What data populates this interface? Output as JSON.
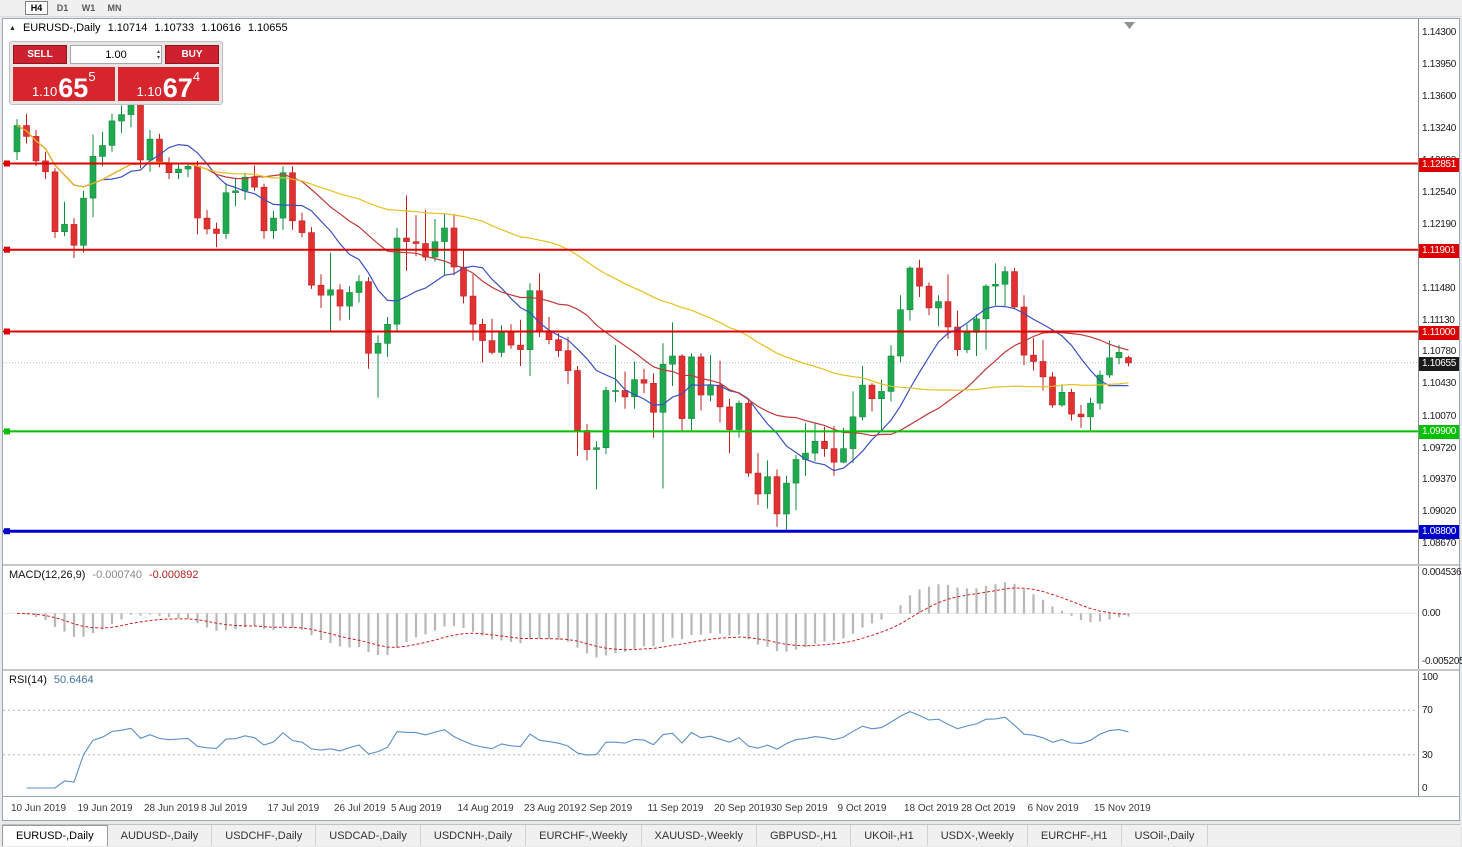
{
  "toolbar": {
    "timeframes": [
      {
        "label": "H4",
        "active": true
      },
      {
        "label": "D1",
        "active": false
      },
      {
        "label": "W1",
        "active": false
      },
      {
        "label": "MN",
        "active": false
      }
    ]
  },
  "chart": {
    "title": {
      "symbol": "EURUSD-,Daily",
      "open": "1.10714",
      "high": "1.10733",
      "low": "1.10616",
      "close": "1.10655"
    }
  },
  "trade_panel": {
    "sell_label": "SELL",
    "buy_label": "BUY",
    "volume": "1.00",
    "sell_price": {
      "base": "1.10",
      "pips": "65",
      "point": "5"
    },
    "buy_price": {
      "base": "1.10",
      "pips": "67",
      "point": "4"
    },
    "accent_color": "#d7252e"
  },
  "chart_data": {
    "type": "candlestick",
    "title": "EURUSD-,Daily",
    "main": {
      "y_range": [
        1.0867,
        1.143
      ],
      "y_axis_labels": [
        "1.14300",
        "1.13950",
        "1.13600",
        "1.13240",
        "1.12890",
        "1.12540",
        "1.12190",
        "1.11840",
        "1.11480",
        "1.11130",
        "1.10780",
        "1.10430",
        "1.10070",
        "1.09720",
        "1.09370",
        "1.09020",
        "1.08670"
      ],
      "current_price": {
        "value": 1.10655,
        "label": "1.10655",
        "badge_color": "#1a1a1a"
      },
      "h_lines": [
        {
          "price": 1.12851,
          "label": "1.12851",
          "color": "#dd0000",
          "width": 2
        },
        {
          "price": 1.11901,
          "label": "1.11901",
          "color": "#dd0000",
          "width": 2
        },
        {
          "price": 1.11,
          "label": "1.11000",
          "color": "#dd0000",
          "width": 2
        },
        {
          "price": 1.099,
          "label": "1.09900",
          "color": "#00c000",
          "width": 2
        },
        {
          "price": 1.088,
          "label": "1.08800",
          "color": "#0000cc",
          "width": 3
        }
      ],
      "moving_averages": [
        {
          "name": "ma-fast",
          "period": 10,
          "color": "#3a50c0"
        },
        {
          "name": "ma-medium",
          "period": 21,
          "color": "#c03a3a"
        },
        {
          "name": "ma-slow",
          "period": 50,
          "color": "#e8c020"
        }
      ],
      "colors": {
        "bull": "#1fa94f",
        "bull_border": "#128a3d",
        "bear": "#e03232",
        "bear_border": "#bf1f1f",
        "background": "#ffffff"
      },
      "date_labels": [
        {
          "index": 0,
          "label": "10 Jun 2019"
        },
        {
          "index": 7,
          "label": "19 Jun 2019"
        },
        {
          "index": 14,
          "label": "28 Jun 2019"
        },
        {
          "index": 20,
          "label": "8 Jul 2019"
        },
        {
          "index": 27,
          "label": "17 Jul 2019"
        },
        {
          "index": 34,
          "label": "26 Jul 2019"
        },
        {
          "index": 40,
          "label": "5 Aug 2019"
        },
        {
          "index": 47,
          "label": "14 Aug 2019"
        },
        {
          "index": 54,
          "label": "23 Aug 2019"
        },
        {
          "index": 60,
          "label": "2 Sep 2019"
        },
        {
          "index": 67,
          "label": "11 Sep 2019"
        },
        {
          "index": 74,
          "label": "20 Sep 2019"
        },
        {
          "index": 80,
          "label": "30 Sep 2019"
        },
        {
          "index": 87,
          "label": "9 Oct 2019"
        },
        {
          "index": 94,
          "label": "18 Oct 2019"
        },
        {
          "index": 100,
          "label": "28 Oct 2019"
        },
        {
          "index": 107,
          "label": "6 Nov 2019"
        },
        {
          "index": 114,
          "label": "15 Nov 2019"
        }
      ],
      "candles": [
        [
          1.1298,
          1.1334,
          1.1289,
          1.1327
        ],
        [
          1.1327,
          1.134,
          1.1307,
          1.1315
        ],
        [
          1.1315,
          1.1322,
          1.1282,
          1.1288
        ],
        [
          1.1288,
          1.1298,
          1.1268,
          1.1276
        ],
        [
          1.1276,
          1.128,
          1.1203,
          1.121
        ],
        [
          1.121,
          1.1243,
          1.1205,
          1.1218
        ],
        [
          1.1218,
          1.1225,
          1.1181,
          1.1195
        ],
        [
          1.1195,
          1.1255,
          1.1187,
          1.1247
        ],
        [
          1.1247,
          1.1317,
          1.1226,
          1.1293
        ],
        [
          1.1293,
          1.132,
          1.1282,
          1.1305
        ],
        [
          1.1305,
          1.134,
          1.1298,
          1.1332
        ],
        [
          1.1332,
          1.1349,
          1.1319,
          1.1339
        ],
        [
          1.1339,
          1.1355,
          1.1325,
          1.135
        ],
        [
          1.135,
          1.1355,
          1.128,
          1.1289
        ],
        [
          1.1289,
          1.1322,
          1.1276,
          1.1312
        ],
        [
          1.1312,
          1.1318,
          1.1281,
          1.1285
        ],
        [
          1.1285,
          1.1292,
          1.1268,
          1.1275
        ],
        [
          1.1275,
          1.1285,
          1.1268,
          1.1279
        ],
        [
          1.1279,
          1.1285,
          1.127,
          1.1282
        ],
        [
          1.1282,
          1.1288,
          1.1207,
          1.1225
        ],
        [
          1.1225,
          1.1234,
          1.1207,
          1.1213
        ],
        [
          1.1213,
          1.122,
          1.1193,
          1.1208
        ],
        [
          1.1208,
          1.1264,
          1.1202,
          1.1253
        ],
        [
          1.1253,
          1.1268,
          1.1238,
          1.1255
        ],
        [
          1.1255,
          1.1275,
          1.1245,
          1.127
        ],
        [
          1.127,
          1.1283,
          1.1255,
          1.1259
        ],
        [
          1.1259,
          1.1263,
          1.1202,
          1.1211
        ],
        [
          1.1211,
          1.1233,
          1.1202,
          1.1225
        ],
        [
          1.1225,
          1.1282,
          1.1212,
          1.1275
        ],
        [
          1.1275,
          1.1282,
          1.1212,
          1.1222
        ],
        [
          1.1222,
          1.1231,
          1.1204,
          1.1209
        ],
        [
          1.1209,
          1.1215,
          1.1147,
          1.1151
        ],
        [
          1.1151,
          1.1163,
          1.1126,
          1.114
        ],
        [
          1.114,
          1.1187,
          1.1101,
          1.1146
        ],
        [
          1.1146,
          1.1152,
          1.1112,
          1.1128
        ],
        [
          1.1128,
          1.115,
          1.1113,
          1.1143
        ],
        [
          1.1143,
          1.1162,
          1.1132,
          1.1155
        ],
        [
          1.1155,
          1.116,
          1.1059,
          1.1076
        ],
        [
          1.1076,
          1.1096,
          1.1027,
          1.1087
        ],
        [
          1.1087,
          1.1116,
          1.1072,
          1.1108
        ],
        [
          1.1108,
          1.1214,
          1.1101,
          1.1203
        ],
        [
          1.1203,
          1.125,
          1.1167,
          1.1199
        ],
        [
          1.1199,
          1.1228,
          1.1183,
          1.1197
        ],
        [
          1.1197,
          1.1234,
          1.1178,
          1.1182
        ],
        [
          1.1182,
          1.1224,
          1.1177,
          1.1199
        ],
        [
          1.1199,
          1.123,
          1.1162,
          1.1214
        ],
        [
          1.1214,
          1.1229,
          1.1162,
          1.1171
        ],
        [
          1.1171,
          1.1191,
          1.1131,
          1.1139
        ],
        [
          1.1139,
          1.1163,
          1.109,
          1.1108
        ],
        [
          1.1108,
          1.1114,
          1.1066,
          1.109
        ],
        [
          1.109,
          1.1114,
          1.1075,
          1.1077
        ],
        [
          1.1077,
          1.1107,
          1.1072,
          1.11
        ],
        [
          1.11,
          1.1108,
          1.1081,
          1.1085
        ],
        [
          1.1085,
          1.1113,
          1.1062,
          1.108
        ],
        [
          1.108,
          1.1153,
          1.1051,
          1.1145
        ],
        [
          1.1145,
          1.1164,
          1.1094,
          1.1101
        ],
        [
          1.1101,
          1.1116,
          1.1086,
          1.1091
        ],
        [
          1.1091,
          1.1098,
          1.1072,
          1.1079
        ],
        [
          1.1079,
          1.1094,
          1.1042,
          1.1057
        ],
        [
          1.1057,
          1.1062,
          1.0963,
          1.0991
        ],
        [
          1.0991,
          1.0998,
          1.0958,
          1.097
        ],
        [
          1.097,
          1.0979,
          1.0926,
          1.0972
        ],
        [
          1.0972,
          1.1039,
          1.0965,
          1.1035
        ],
        [
          1.1035,
          1.1085,
          1.1022,
          1.1035
        ],
        [
          1.1035,
          1.1056,
          1.1015,
          1.1028
        ],
        [
          1.1028,
          1.1067,
          1.1015,
          1.1047
        ],
        [
          1.1047,
          1.1059,
          1.1032,
          1.1043
        ],
        [
          1.1043,
          1.1054,
          1.0983,
          1.1011
        ],
        [
          1.1011,
          1.1087,
          1.0927,
          1.1064
        ],
        [
          1.1064,
          1.111,
          1.104,
          1.1073
        ],
        [
          1.1073,
          1.1075,
          1.099,
          1.1004
        ],
        [
          1.1004,
          1.1076,
          1.0989,
          1.1072
        ],
        [
          1.1072,
          1.1076,
          1.1013,
          1.103
        ],
        [
          1.103,
          1.1074,
          1.1023,
          1.1041
        ],
        [
          1.1041,
          1.1068,
          1.1,
          1.1017
        ],
        [
          1.1017,
          1.1026,
          1.0966,
          1.0992
        ],
        [
          1.0992,
          1.1024,
          1.0983,
          1.1021
        ],
        [
          1.1021,
          1.1024,
          1.094,
          1.0944
        ],
        [
          1.0944,
          1.0966,
          1.0909,
          1.0921
        ],
        [
          1.0921,
          1.0958,
          1.0905,
          1.094
        ],
        [
          1.094,
          1.0948,
          1.0885,
          1.0899
        ],
        [
          1.0899,
          1.0941,
          1.0879,
          1.0933
        ],
        [
          1.0933,
          1.0964,
          1.0903,
          1.0959
        ],
        [
          1.0959,
          1.0999,
          1.0941,
          1.0966
        ],
        [
          1.0966,
          1.0999,
          1.0957,
          1.0979
        ],
        [
          1.0979,
          1.0995,
          1.0962,
          1.0971
        ],
        [
          1.0971,
          1.0996,
          1.0941,
          1.0956
        ],
        [
          1.0956,
          1.0994,
          1.0955,
          1.0971
        ],
        [
          1.0971,
          1.1034,
          1.0955,
          1.1006
        ],
        [
          1.1006,
          1.1062,
          1.1002,
          1.1041
        ],
        [
          1.1041,
          1.1043,
          1.1012,
          1.1026
        ],
        [
          1.1026,
          1.1047,
          1.0991,
          1.1034
        ],
        [
          1.1034,
          1.1085,
          1.1023,
          1.1073
        ],
        [
          1.1073,
          1.114,
          1.1066,
          1.1124
        ],
        [
          1.1124,
          1.1172,
          1.1112,
          1.117
        ],
        [
          1.117,
          1.1179,
          1.1138,
          1.115
        ],
        [
          1.115,
          1.1154,
          1.1118,
          1.1126
        ],
        [
          1.1126,
          1.114,
          1.1106,
          1.1133
        ],
        [
          1.1133,
          1.1163,
          1.1092,
          1.1105
        ],
        [
          1.1105,
          1.1123,
          1.1073,
          1.108
        ],
        [
          1.108,
          1.1108,
          1.1076,
          1.1099
        ],
        [
          1.1099,
          1.1119,
          1.1073,
          1.1114
        ],
        [
          1.1114,
          1.1152,
          1.108,
          1.115
        ],
        [
          1.115,
          1.1175,
          1.1129,
          1.1152
        ],
        [
          1.1152,
          1.1172,
          1.1128,
          1.1166
        ],
        [
          1.1166,
          1.117,
          1.1125,
          1.1127
        ],
        [
          1.1127,
          1.114,
          1.1063,
          1.1074
        ],
        [
          1.1074,
          1.1093,
          1.1057,
          1.1067
        ],
        [
          1.1067,
          1.1091,
          1.1035,
          1.105
        ],
        [
          1.105,
          1.1055,
          1.1016,
          1.1019
        ],
        [
          1.1019,
          1.1042,
          1.1017,
          1.1033
        ],
        [
          1.1033,
          1.1037,
          1.1002,
          1.1009
        ],
        [
          1.1009,
          1.1019,
          1.0994,
          1.1006
        ],
        [
          1.1006,
          1.1027,
          1.0989,
          1.1021
        ],
        [
          1.1021,
          1.1057,
          1.1014,
          1.1052
        ],
        [
          1.1052,
          1.109,
          1.1049,
          1.1071
        ],
        [
          1.1071,
          1.1085,
          1.1064,
          1.1077
        ],
        [
          1.10714,
          1.10733,
          1.10616,
          1.10655
        ]
      ]
    },
    "macd": {
      "name": "MACD(12,26,9)",
      "params": [
        12,
        26,
        9
      ],
      "values": [
        "-0.000740",
        "-0.000892"
      ],
      "axis_labels": [
        {
          "text": "0.004536",
          "value": 0.004536
        },
        {
          "text": "0.00",
          "value": 0
        },
        {
          "text": "-0.005205",
          "value": -0.005205
        }
      ],
      "colors": {
        "histogram": "#b8b8b8",
        "signal": "#cc2222"
      }
    },
    "rsi": {
      "name": "RSI(14)",
      "period": 14,
      "value": "50.6464",
      "levels": [
        {
          "text": "100",
          "value": 100,
          "dashed": false
        },
        {
          "text": "70",
          "value": 70,
          "dashed": true
        },
        {
          "text": "30",
          "value": 30,
          "dashed": true
        },
        {
          "text": "0",
          "value": 0,
          "dashed": false
        }
      ],
      "color": "#5a8fc8"
    }
  },
  "tabs": [
    {
      "label": "EURUSD-,Daily",
      "active": true
    },
    {
      "label": "AUDUSD-,Daily",
      "active": false
    },
    {
      "label": "USDCHF-,Daily",
      "active": false
    },
    {
      "label": "USDCAD-,Daily",
      "active": false
    },
    {
      "label": "USDCNH-,Daily",
      "active": false
    },
    {
      "label": "EURCHF-,Weekly",
      "active": false
    },
    {
      "label": "XAUUSD-,Weekly",
      "active": false
    },
    {
      "label": "GBPUSD-,H1",
      "active": false
    },
    {
      "label": "UKOil-,H1",
      "active": false
    },
    {
      "label": "USDX-,Weekly",
      "active": false
    },
    {
      "label": "EURCHF-,H1",
      "active": false
    },
    {
      "label": "USOil-,Daily",
      "active": false
    }
  ]
}
